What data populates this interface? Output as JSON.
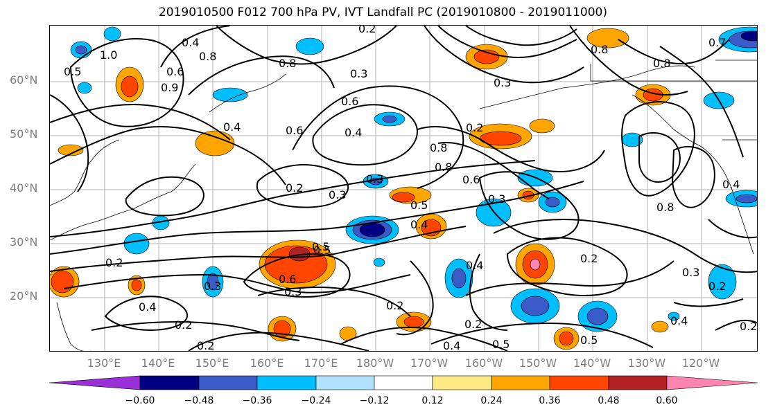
{
  "title": "2019010500 F012 700 hPa PV, IVT Landfall PC (2019010800 - 2019011000)",
  "lat_labels": [
    "60°N",
    "50°N",
    "40°N",
    "30°N",
    "20°N"
  ],
  "lon_labels": [
    "130°E",
    "140°E",
    "150°E",
    "160°E",
    "170°E",
    "180°W",
    "170°W",
    "160°W",
    "150°W",
    "140°W",
    "130°W",
    "120°W"
  ],
  "colorbar": {
    "colors": [
      "#9b30d9",
      "#000080",
      "#3a5bc7",
      "#00bfff",
      "#b0e2ff",
      "#ffffff",
      "#ffeb85",
      "#ffa500",
      "#ff4500",
      "#b22222",
      "#ff85b0"
    ],
    "ticks": [
      "−0.60",
      "−0.48",
      "−0.36",
      "−0.24",
      "−0.12",
      "0.12",
      "0.24",
      "0.36",
      "0.48",
      "0.60"
    ]
  },
  "contour_labels": [
    "0.4",
    "0.8",
    "0.6",
    "1.0",
    "0.5",
    "0.9",
    "0.8",
    "0.2",
    "0.3",
    "0.6",
    "0.4",
    "0.4",
    "0.6",
    "0.2",
    "0.3",
    "0.3",
    "0.5",
    "0.6",
    "0.4",
    "0.8",
    "0.3",
    "0.5",
    "0.2",
    "0.3",
    "0.4",
    "0.6",
    "0.2",
    "0.4",
    "0.2",
    "0.2",
    "0.5",
    "0.3",
    "0.2",
    "0.4",
    "0.2",
    "0.5",
    "0.5",
    "0.2",
    "0.3",
    "0.4",
    "0.2",
    "0.8",
    "0.7",
    "0.8",
    "0.8",
    "0.4",
    "0.3",
    "0.8",
    "0.2"
  ]
}
